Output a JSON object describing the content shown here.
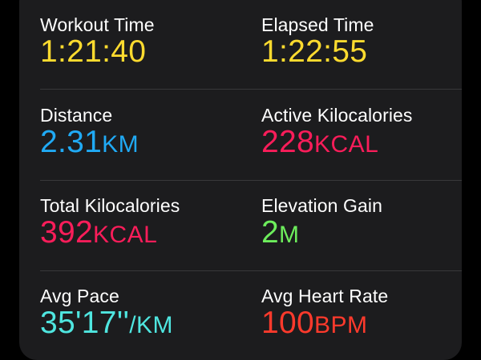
{
  "metrics": [
    {
      "label": "Workout Time",
      "value": "1:21:40",
      "unit": "",
      "color": "#fedb2f"
    },
    {
      "label": "Elapsed Time",
      "value": "1:22:55",
      "unit": "",
      "color": "#fedb2f"
    },
    {
      "label": "Distance",
      "value": "2.31",
      "unit": "KM",
      "color": "#20aaf5"
    },
    {
      "label": "Active Kilocalories",
      "value": "228",
      "unit": "KCAL",
      "color": "#fa1d5a"
    },
    {
      "label": "Total Kilocalories",
      "value": "392",
      "unit": "KCAL",
      "color": "#fa1d5a"
    },
    {
      "label": "Elevation Gain",
      "value": "2",
      "unit": "M",
      "color": "#6ded5c"
    },
    {
      "label": "Avg Pace",
      "value": "35'17''",
      "unit": "/KM",
      "color": "#4fe6e0"
    },
    {
      "label": "Avg Heart Rate",
      "value": "100",
      "unit": "BPM",
      "color": "#ff3a2c"
    }
  ]
}
